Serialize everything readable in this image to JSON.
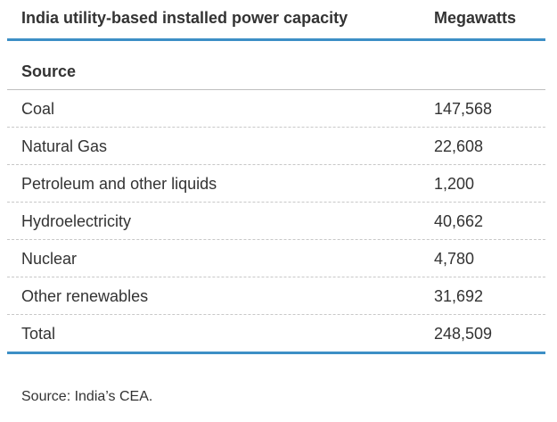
{
  "chart_data": {
    "type": "table",
    "title": "India utility-based installed power capacity",
    "value_header": "Megawatts",
    "section_label": "Source",
    "rows": [
      {
        "label": "Coal",
        "value": "147,568"
      },
      {
        "label": "Natural Gas",
        "value": "22,608"
      },
      {
        "label": "Petroleum and other liquids",
        "value": "1,200"
      },
      {
        "label": "Hydroelectricity",
        "value": "40,662"
      },
      {
        "label": "Nuclear",
        "value": "4,780"
      },
      {
        "label": "Other renewables",
        "value": "31,692"
      },
      {
        "label": "Total",
        "value": "248,509"
      }
    ],
    "source": "Source: India’s CEA.",
    "colors": {
      "rule": "#3d8fc6",
      "text": "#333333"
    }
  }
}
